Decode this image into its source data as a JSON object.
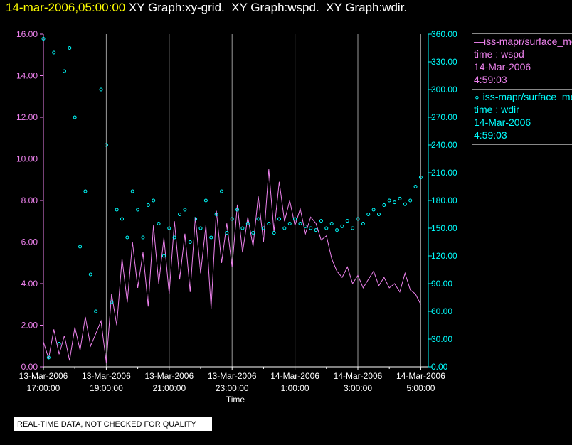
{
  "header": {
    "timestamp": "14-mar-2006,05:00:00",
    "graphs": " XY Graph:xy-grid.  XY Graph:wspd.  XY Graph:wdir."
  },
  "legend": [
    {
      "line1": "—iss-mapr/surface_met",
      "line2": "time : wspd",
      "line3": "14-Mar-2006",
      "line4": "4:59:03"
    },
    {
      "line1": "∘ iss-mapr/surface_met",
      "line2": "time : wdir",
      "line3": "14-Mar-2006",
      "line4": "4:59:03"
    }
  ],
  "footer": "REAL-TIME DATA, NOT CHECKED FOR QUALITY",
  "chart_data": {
    "type": "line",
    "xlabel": "Time",
    "x_units": "hours since 13-Mar-2006 17:00:00",
    "x_range": [
      0,
      12.25
    ],
    "x_ticks": [
      {
        "h": 0,
        "date": "13-Mar-2006",
        "time": "17:00:00"
      },
      {
        "h": 2,
        "date": "13-Mar-2006",
        "time": "19:00:00"
      },
      {
        "h": 4,
        "date": "13-Mar-2006",
        "time": "21:00:00"
      },
      {
        "h": 6,
        "date": "13-Mar-2006",
        "time": "23:00:00"
      },
      {
        "h": 8,
        "date": "14-Mar-2006",
        "time": "1:00:00"
      },
      {
        "h": 10,
        "date": "14-Mar-2006",
        "time": "3:00:00"
      },
      {
        "h": 12,
        "date": "14-Mar-2006",
        "time": "5:00:00"
      }
    ],
    "left_axis": {
      "ylim": [
        0,
        16
      ],
      "ticks": [
        "0.00",
        "2.00",
        "4.00",
        "6.00",
        "8.00",
        "10.00",
        "12.00",
        "14.00",
        "16.00"
      ],
      "color": "#ee82ee"
    },
    "right_axis": {
      "ylim": [
        0,
        360
      ],
      "ticks": [
        "0.00",
        "30.00",
        "60.00",
        "90.00",
        "120.00",
        "150.00",
        "180.00",
        "210.00",
        "240.00",
        "270.00",
        "300.00",
        "330.00",
        "360.00"
      ],
      "color": "#00ffff"
    },
    "series": [
      {
        "name": "wspd",
        "axis": "left",
        "style": "line",
        "color": "#ee82ee",
        "dx_hours": 0.16667,
        "values": [
          1.2,
          0.4,
          1.8,
          0.6,
          1.5,
          0.3,
          1.9,
          0.8,
          2.4,
          1.0,
          1.6,
          2.2,
          0.2,
          3.5,
          2.0,
          5.2,
          3.1,
          6.0,
          3.8,
          5.5,
          2.9,
          6.8,
          4.0,
          6.2,
          3.5,
          7.0,
          4.2,
          6.4,
          3.6,
          7.2,
          4.5,
          6.8,
          2.8,
          7.5,
          5.0,
          6.9,
          4.8,
          7.8,
          5.5,
          7.2,
          5.8,
          8.2,
          6.0,
          9.5,
          6.5,
          8.9,
          7.0,
          8.0,
          6.8,
          7.6,
          6.4,
          7.2,
          6.9,
          6.1,
          6.3,
          5.2,
          4.6,
          4.3,
          4.8,
          4.0,
          4.4,
          3.8,
          4.2,
          4.6,
          3.9,
          4.3,
          3.8,
          4.0,
          3.6,
          4.5,
          3.7,
          3.5,
          3.0
        ]
      },
      {
        "name": "wdir",
        "axis": "right",
        "style": "points",
        "color": "#00ffff",
        "dx_hours": 0.16667,
        "values": [
          355,
          10,
          340,
          25,
          320,
          345,
          270,
          130,
          190,
          100,
          60,
          300,
          240,
          70,
          170,
          160,
          140,
          190,
          170,
          140,
          175,
          180,
          155,
          120,
          150,
          140,
          165,
          170,
          135,
          160,
          150,
          180,
          140,
          165,
          190,
          145,
          160,
          170,
          150,
          155,
          145,
          160,
          150,
          155,
          145,
          160,
          150,
          155,
          160,
          155,
          152,
          150,
          148,
          158,
          150,
          155,
          148,
          152,
          158,
          150,
          160,
          155,
          165,
          170,
          165,
          175,
          180,
          178,
          182,
          176,
          180,
          195,
          205
        ]
      }
    ]
  }
}
